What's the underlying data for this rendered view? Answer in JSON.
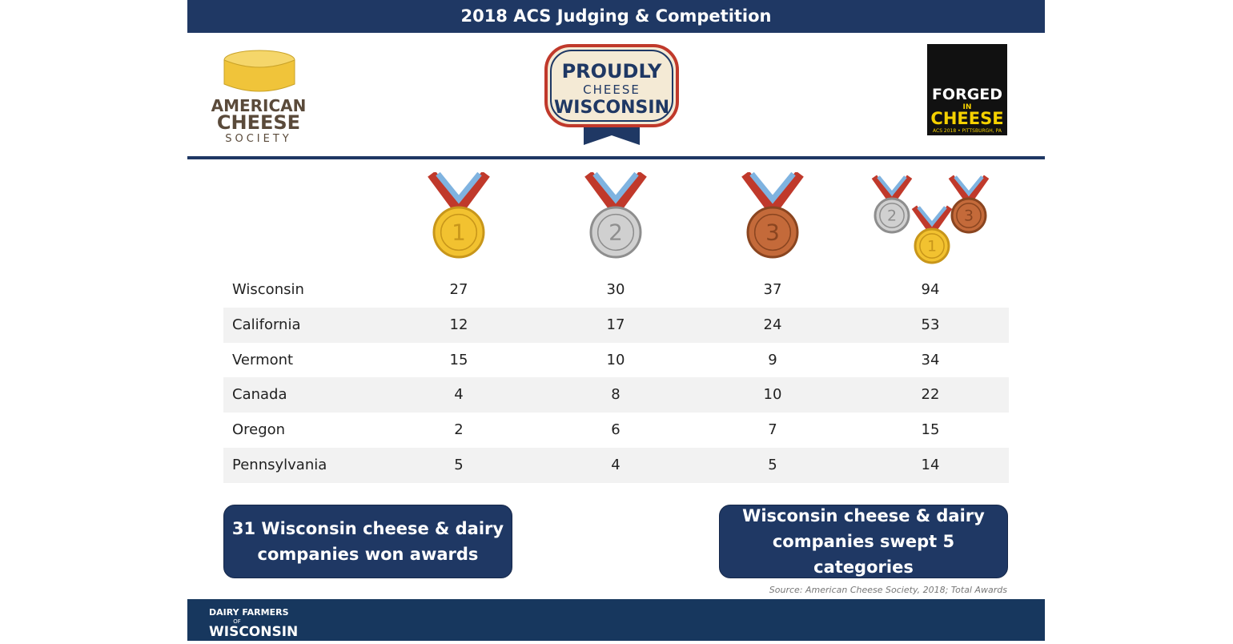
{
  "header": {
    "title": "2018 ACS Judging & Competition"
  },
  "logos": {
    "left": [
      "AMERICAN",
      "CHEESE",
      "SOCIETY"
    ],
    "center": [
      "PROUDLY",
      "CHEESE",
      "WISCONSIN"
    ],
    "right": [
      "FORGED",
      "IN",
      "CHEESE",
      "ACS 2018 • PITTSBURGH, PA"
    ]
  },
  "medals": [
    "1",
    "2",
    "3"
  ],
  "table": {
    "rows": [
      [
        "Wisconsin",
        27,
        30,
        37,
        94
      ],
      [
        "California",
        12,
        17,
        24,
        53
      ],
      [
        "Vermont",
        15,
        10,
        9,
        34
      ],
      [
        "Canada",
        4,
        8,
        10,
        22
      ],
      [
        "Oregon",
        2,
        6,
        7,
        15
      ],
      [
        "Pennsylvania",
        5,
        4,
        5,
        14
      ]
    ]
  },
  "callouts": [
    "31 Wisconsin cheese & dairy companies won awards",
    "Wisconsin cheese & dairy companies swept 5 categories"
  ],
  "source": "Source: American Cheese Society, 2018; Total Awards",
  "footer": {
    "logo": [
      "DAIRY FARMERS",
      "OF",
      "WISCONSIN"
    ]
  }
}
